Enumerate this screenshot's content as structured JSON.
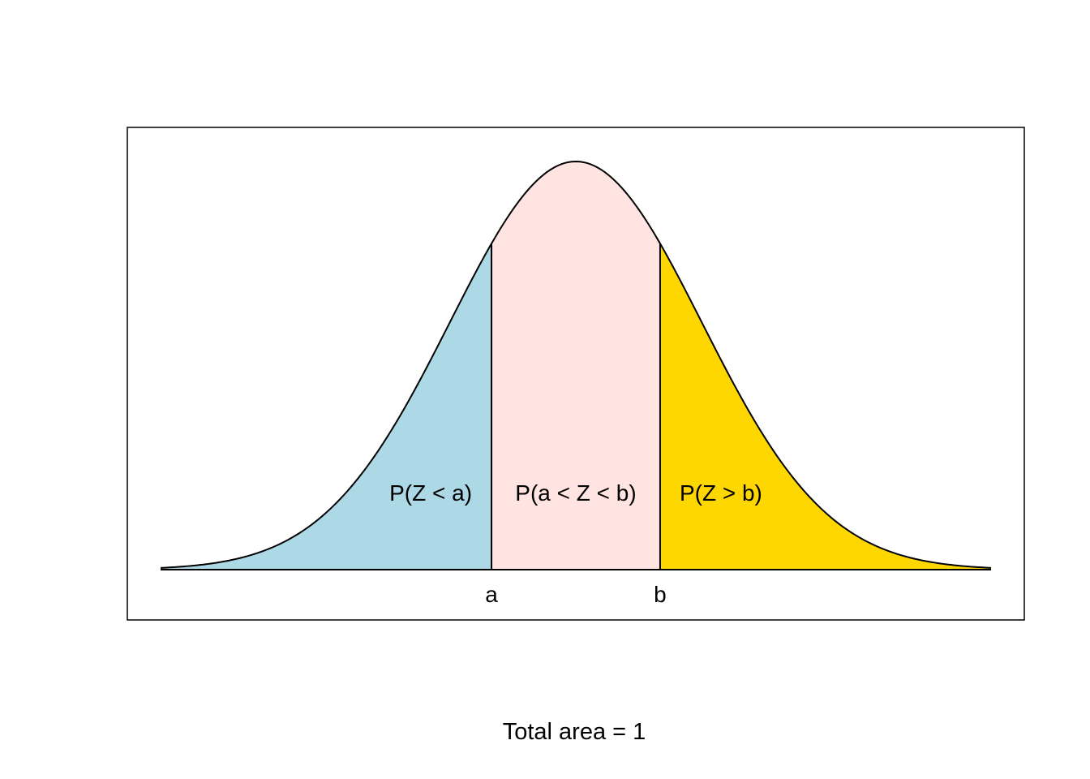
{
  "chart_data": {
    "type": "area",
    "distribution": "standard normal density",
    "xlim": [
      -3.3,
      3.3
    ],
    "cut_points": [
      {
        "name": "a",
        "x": -0.67,
        "label": "a"
      },
      {
        "name": "b",
        "x": 0.67,
        "label": "b"
      }
    ],
    "regions": [
      {
        "name": "left",
        "label": "P(Z < a)",
        "from": -3.3,
        "to": -0.67,
        "color": "#ADD8E6"
      },
      {
        "name": "middle",
        "label": "P(a < Z < b)",
        "from": -0.67,
        "to": 0.67,
        "color": "#FFE4E1"
      },
      {
        "name": "right",
        "label": "P(Z > b)",
        "from": 0.67,
        "to": 3.3,
        "color": "#FFD700"
      }
    ],
    "caption": "Total area = 1",
    "axes_visible": false,
    "grid": false
  }
}
